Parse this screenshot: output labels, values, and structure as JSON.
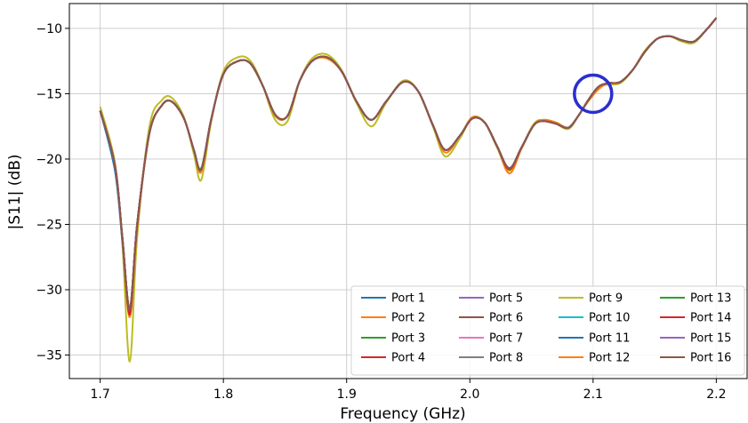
{
  "chart_data": {
    "type": "line",
    "title": "",
    "xlabel": "Frequency (GHz)",
    "ylabel": "|S11| (dB)",
    "xlim": [
      1.675,
      2.225
    ],
    "ylim": [
      -36.8,
      -8.1
    ],
    "xticks": [
      1.7,
      1.8,
      1.9,
      2.0,
      2.1,
      2.2
    ],
    "xtick_labels": [
      "1.7",
      "1.8",
      "1.9",
      "2.0",
      "2.1",
      "2.2"
    ],
    "yticks": [
      -10,
      -15,
      -20,
      -25,
      -30,
      -35
    ],
    "ytick_labels": [
      "−10",
      "−15",
      "−20",
      "−25",
      "−30",
      "−35"
    ],
    "grid": true,
    "legend_position": "lower-right",
    "legend_columns": 4,
    "x": [
      1.7,
      1.712,
      1.718,
      1.724,
      1.73,
      1.74,
      1.75,
      1.758,
      1.768,
      1.776,
      1.782,
      1.79,
      1.8,
      1.812,
      1.822,
      1.832,
      1.842,
      1.852,
      1.862,
      1.872,
      1.884,
      1.896,
      1.908,
      1.92,
      1.932,
      1.946,
      1.958,
      1.97,
      1.98,
      1.992,
      2.002,
      2.012,
      2.022,
      2.032,
      2.042,
      2.052,
      2.06,
      2.07,
      2.08,
      2.088,
      2.096,
      2.104,
      2.112,
      2.122,
      2.132,
      2.142,
      2.152,
      2.162,
      2.172,
      2.182,
      2.192,
      2.2
    ],
    "base_values": [
      -16.3,
      -20.5,
      -26.0,
      -31.5,
      -25.0,
      -18.0,
      -15.9,
      -15.6,
      -16.9,
      -19.3,
      -20.8,
      -17.0,
      -13.5,
      -12.5,
      -12.7,
      -14.4,
      -16.6,
      -16.7,
      -14.0,
      -12.5,
      -12.2,
      -13.3,
      -15.6,
      -17.0,
      -15.6,
      -14.1,
      -14.8,
      -17.4,
      -19.3,
      -18.2,
      -16.9,
      -17.2,
      -19.0,
      -20.7,
      -19.1,
      -17.4,
      -17.1,
      -17.3,
      -17.6,
      -16.7,
      -15.5,
      -14.5,
      -14.2,
      -14.1,
      -13.2,
      -11.8,
      -10.8,
      -10.6,
      -10.9,
      -11.0,
      -10.1,
      -9.2
    ],
    "series": [
      {
        "name": "Port 1",
        "color": "#1f77b4",
        "offsets": [
          0,
          -0.4,
          -0.3,
          -0.2,
          -0.1,
          0,
          0,
          0,
          0,
          0,
          0,
          0,
          0,
          0,
          0,
          0,
          0,
          0,
          0,
          0,
          0,
          0,
          0,
          0,
          0,
          0,
          0,
          0,
          0,
          0,
          0,
          0,
          0,
          0,
          0,
          0,
          0,
          0,
          0,
          0,
          0,
          0,
          0,
          0,
          0,
          0,
          0,
          0,
          0,
          0,
          0,
          0
        ]
      },
      {
        "name": "Port 2",
        "color": "#ff7f0e",
        "offsets": [
          0,
          0,
          0,
          -0.6,
          -0.3,
          0,
          0,
          0,
          0,
          0,
          -0.2,
          0,
          0,
          0,
          0,
          0,
          -0.1,
          0,
          0,
          0,
          -0.1,
          0,
          0,
          0,
          0,
          0,
          0,
          0,
          -0.2,
          0,
          0.1,
          0,
          0,
          -0.4,
          -0.1,
          0,
          0.1,
          0.1,
          0,
          0,
          -0.1,
          -0.2,
          0,
          0,
          0,
          0,
          0,
          0,
          0,
          0,
          0,
          0
        ]
      },
      {
        "name": "Port 3",
        "color": "#2ca02c",
        "offsets": [
          0,
          0,
          0,
          0.1,
          0,
          0,
          0,
          0,
          0,
          0,
          0.1,
          0,
          0,
          0,
          0,
          0,
          0,
          0,
          0,
          0,
          0,
          0,
          0,
          0,
          0,
          0,
          0,
          0,
          0,
          0,
          0,
          0,
          0,
          0,
          0,
          0,
          0,
          0,
          0,
          0,
          0,
          0,
          0,
          0,
          0,
          0,
          0,
          0,
          0,
          0,
          0,
          0
        ]
      },
      {
        "name": "Port 4",
        "color": "#d62728",
        "offsets": [
          0,
          0,
          -0.1,
          -0.4,
          -0.2,
          0,
          0,
          0,
          0,
          0,
          0,
          0,
          0,
          0,
          0,
          0,
          0,
          0,
          0,
          0,
          0,
          0,
          0,
          0,
          0,
          0,
          0,
          0,
          0,
          0,
          0,
          0,
          0,
          -0.1,
          0,
          0,
          0,
          0,
          0,
          0,
          0,
          0,
          0,
          0,
          0,
          0,
          0,
          0,
          0,
          0,
          0,
          0
        ]
      },
      {
        "name": "Port 5",
        "color": "#9467bd",
        "offsets": [
          0,
          0,
          0,
          0,
          0,
          0,
          0,
          0,
          0,
          0,
          0,
          0,
          0,
          0,
          0,
          0,
          0,
          0,
          0,
          0,
          0,
          0,
          0,
          0,
          0,
          0,
          0,
          0,
          0,
          0,
          0,
          0,
          0,
          0,
          0,
          0,
          0,
          0,
          0,
          0,
          0,
          0,
          0,
          0,
          0,
          0,
          0,
          0,
          0,
          0,
          0,
          0
        ]
      },
      {
        "name": "Port 6",
        "color": "#8c564b",
        "offsets": [
          0,
          0,
          0,
          0.1,
          0,
          0,
          0,
          0,
          0,
          0,
          0,
          0,
          0,
          0,
          0,
          0,
          0,
          0,
          0,
          0,
          0,
          0,
          0,
          0,
          0,
          0,
          0,
          0,
          0,
          0,
          0,
          0,
          0,
          0,
          0,
          0,
          0,
          0,
          0,
          0,
          0,
          0,
          0,
          0,
          0,
          0,
          0,
          0,
          0,
          0,
          0,
          0
        ]
      },
      {
        "name": "Port 7",
        "color": "#e377c2",
        "offsets": [
          0,
          0,
          0,
          0,
          0,
          0,
          0,
          0,
          0,
          0,
          0,
          0,
          0,
          0,
          0,
          0,
          0,
          0,
          0,
          0,
          0,
          0,
          0,
          0,
          0,
          0,
          0,
          0,
          0,
          0,
          0,
          0,
          0,
          0,
          0,
          0,
          0,
          0,
          0,
          0,
          0,
          0,
          0,
          0,
          0,
          0,
          0,
          0,
          0,
          0,
          0,
          0
        ]
      },
      {
        "name": "Port 8",
        "color": "#7f7f7f",
        "offsets": [
          0,
          0,
          0,
          0,
          0,
          0,
          0,
          0,
          0,
          0,
          0,
          0,
          0,
          0,
          0,
          0,
          0,
          0,
          0,
          0,
          0,
          0,
          0,
          0,
          0,
          0,
          0,
          0,
          0,
          0,
          0,
          0,
          0,
          0,
          0,
          0,
          0,
          0,
          0,
          0,
          0,
          0,
          0,
          0,
          0,
          0,
          0,
          0,
          0,
          0,
          0,
          0
        ]
      },
      {
        "name": "Port 9",
        "color": "#bcbd22",
        "offsets": [
          0.3,
          0.2,
          -0.5,
          -4.0,
          -1.0,
          0.5,
          0.4,
          0.3,
          0.1,
          -0.3,
          -0.8,
          -0.2,
          0.2,
          0.3,
          0.2,
          0,
          -0.4,
          -0.4,
          0,
          0.2,
          0.2,
          0.1,
          -0.1,
          -0.5,
          -0.1,
          0.1,
          0,
          -0.1,
          -0.5,
          -0.2,
          0.1,
          0,
          -0.1,
          -0.2,
          0,
          0.1,
          0.1,
          0,
          -0.1,
          0,
          0,
          0,
          -0.1,
          -0.1,
          0,
          0.1,
          0,
          0,
          -0.1,
          -0.1,
          0,
          0
        ]
      },
      {
        "name": "Port 10",
        "color": "#17becf",
        "offsets": [
          0,
          0,
          0,
          0,
          0,
          0,
          0,
          0,
          0,
          0,
          0,
          0,
          0,
          0,
          0,
          0,
          0,
          0,
          0,
          0,
          0,
          0,
          0,
          0,
          0,
          0,
          0,
          0,
          0,
          0,
          0,
          0,
          0,
          0,
          0,
          0,
          0,
          0,
          0,
          0,
          0,
          0,
          0,
          0,
          0,
          0,
          0,
          0,
          0,
          0,
          0,
          0
        ]
      },
      {
        "name": "Port 11",
        "color": "#1f77b4",
        "offsets": [
          0,
          0,
          0,
          0,
          0,
          0,
          0,
          0,
          0,
          0,
          0,
          0,
          0,
          0,
          0,
          0,
          0,
          0,
          0,
          0,
          0,
          0,
          0,
          0,
          0,
          0,
          0,
          0,
          0,
          0,
          0,
          0,
          0,
          0,
          0,
          0,
          0,
          0,
          0,
          0,
          0,
          0,
          0,
          0,
          0,
          0,
          0,
          0,
          0,
          0,
          0,
          0
        ]
      },
      {
        "name": "Port 12",
        "color": "#ff7f0e",
        "offsets": [
          0,
          0,
          0,
          0,
          0,
          0,
          0,
          0,
          0,
          0,
          0,
          0,
          0,
          0,
          0,
          0,
          0,
          0,
          0,
          0,
          0,
          0,
          0,
          0,
          0,
          0,
          0,
          0,
          0,
          0,
          0,
          0,
          0,
          0,
          0,
          0,
          0,
          0,
          0,
          0,
          0,
          0,
          0,
          0,
          0,
          0,
          0,
          0,
          0,
          0,
          0,
          0
        ]
      },
      {
        "name": "Port 13",
        "color": "#2ca02c",
        "offsets": [
          0,
          0,
          0,
          0,
          0,
          0,
          0,
          0,
          0,
          0,
          0,
          0,
          0,
          0,
          0,
          0,
          0,
          0,
          0,
          0,
          0,
          0,
          0,
          0,
          0,
          0,
          0,
          0,
          0,
          0,
          0,
          0,
          0,
          0,
          0,
          0,
          0,
          0,
          0,
          0,
          0,
          0,
          0,
          0,
          0,
          0,
          0,
          0,
          0,
          0,
          0,
          0
        ]
      },
      {
        "name": "Port 14",
        "color": "#d62728",
        "offsets": [
          0,
          0,
          0,
          0,
          0,
          0,
          0,
          0,
          0,
          0,
          0,
          0,
          0,
          0,
          0,
          0,
          0,
          0,
          0,
          0,
          0,
          0,
          0,
          0,
          0,
          0,
          0,
          0,
          0,
          0,
          0,
          0,
          0,
          0,
          0,
          0,
          0,
          0,
          0,
          0,
          0,
          0,
          0,
          0,
          0,
          0,
          0,
          0,
          0,
          0,
          0,
          0
        ]
      },
      {
        "name": "Port 15",
        "color": "#9467bd",
        "offsets": [
          0,
          0,
          0,
          0,
          0,
          0,
          0,
          0,
          0,
          0,
          0,
          0,
          0,
          0,
          0,
          0,
          0,
          0,
          0,
          0,
          0,
          0,
          0,
          0,
          0,
          0,
          0,
          0,
          0,
          0,
          0,
          0,
          0,
          0,
          0,
          0,
          0,
          0,
          0,
          0,
          0,
          0,
          0,
          0,
          0,
          0,
          0,
          0,
          0,
          0,
          0,
          0
        ]
      },
      {
        "name": "Port 16",
        "color": "#8c564b",
        "offsets": [
          0,
          0,
          0,
          0,
          0,
          0,
          0,
          0,
          0,
          0,
          0,
          0,
          0,
          0,
          0,
          0,
          0,
          0,
          0,
          0,
          0,
          0,
          0,
          0,
          0,
          0,
          0,
          0,
          0,
          0,
          0,
          0,
          0,
          0,
          0,
          0,
          0,
          0,
          0,
          0,
          0,
          0,
          0,
          0,
          0,
          0,
          0,
          0,
          0,
          0,
          0,
          0
        ]
      }
    ],
    "annotation": {
      "shape": "circle",
      "x": 2.1,
      "y": -15.0,
      "color": "#2a2fcf"
    }
  }
}
